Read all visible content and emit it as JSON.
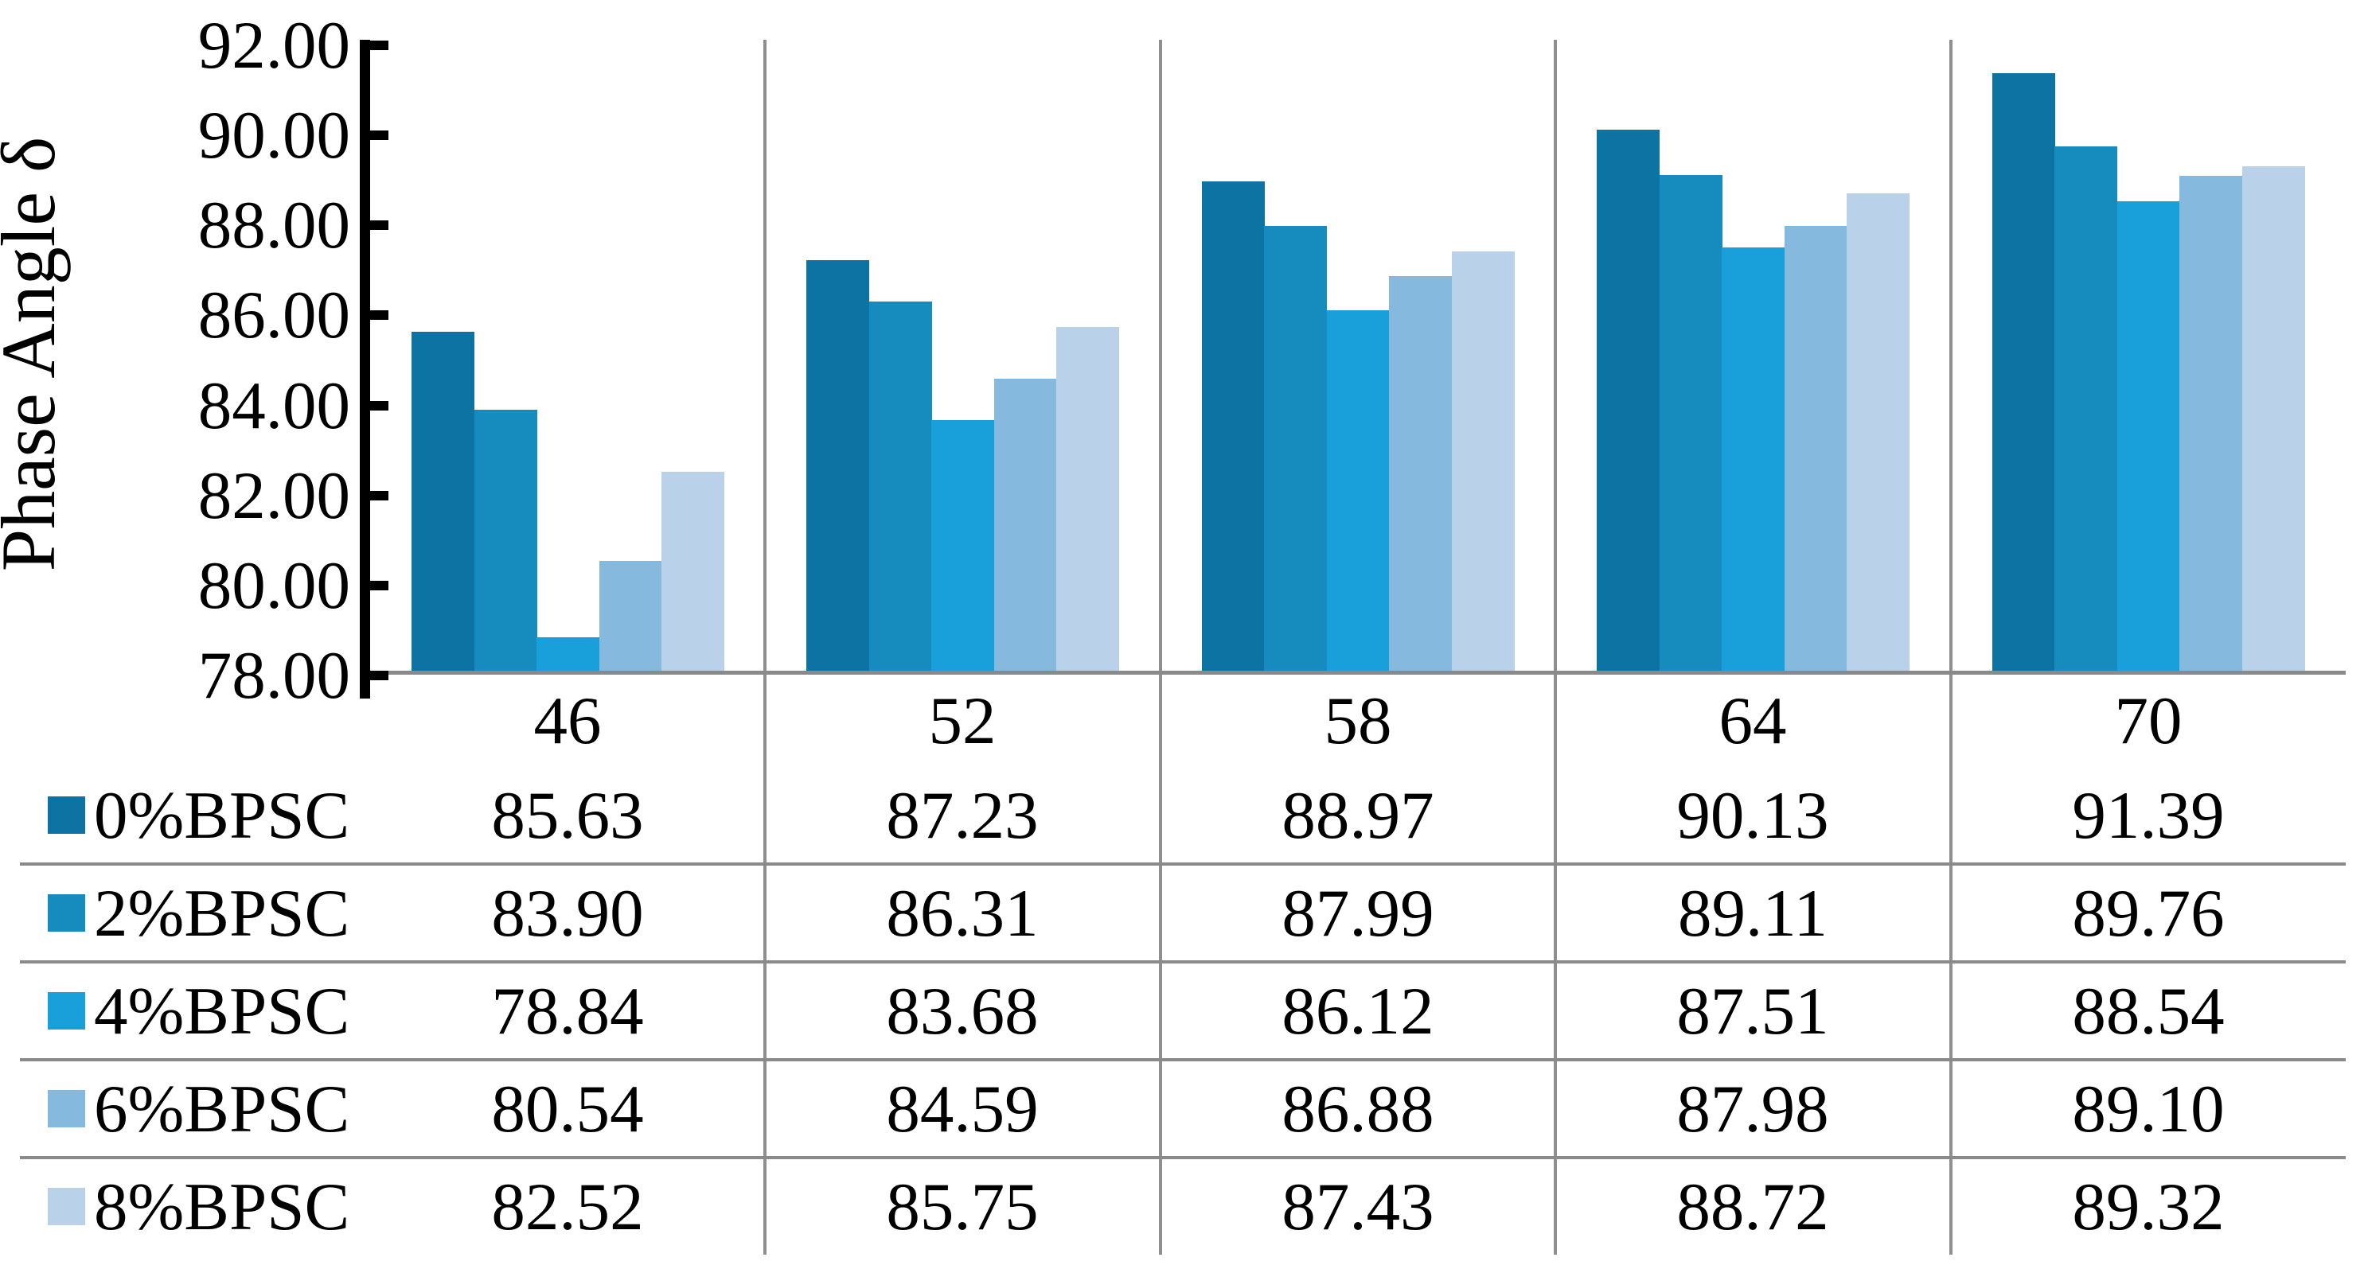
{
  "chart_data": {
    "type": "bar",
    "title": "",
    "ylabel": "Phase Angle δ",
    "xlabel": "",
    "categories": [
      "46",
      "52",
      "58",
      "64",
      "70"
    ],
    "series": [
      {
        "name": "0%BPSC",
        "color": "#0d73a3",
        "values": [
          85.63,
          87.23,
          88.97,
          90.13,
          91.39
        ]
      },
      {
        "name": "2%BPSC",
        "color": "#168bbd",
        "values": [
          83.9,
          86.31,
          87.99,
          89.11,
          89.76
        ]
      },
      {
        "name": "4%BPSC",
        "color": "#19a0da",
        "values": [
          78.84,
          83.68,
          86.12,
          87.51,
          88.54
        ]
      },
      {
        "name": "6%BPSC",
        "color": "#86b9de",
        "values": [
          80.54,
          84.59,
          86.88,
          87.98,
          89.1
        ]
      },
      {
        "name": "8%BPSC",
        "color": "#bad2e9",
        "values": [
          82.52,
          85.75,
          87.43,
          88.72,
          89.32
        ]
      }
    ],
    "y_axis": {
      "min": 78,
      "max": 92,
      "step": 2,
      "tick_labels": [
        "92.00",
        "90.00",
        "88.00",
        "86.00",
        "84.00",
        "82.00",
        "80.00",
        "78.00"
      ]
    },
    "value_format": "2dp",
    "legend_position": "data-table-left-column",
    "grid": "vertical-category-dividers",
    "layout_style": "excel-clustered-bars-with-data-table",
    "line_color": "#8a8a8a",
    "axis_color": "#000000"
  }
}
